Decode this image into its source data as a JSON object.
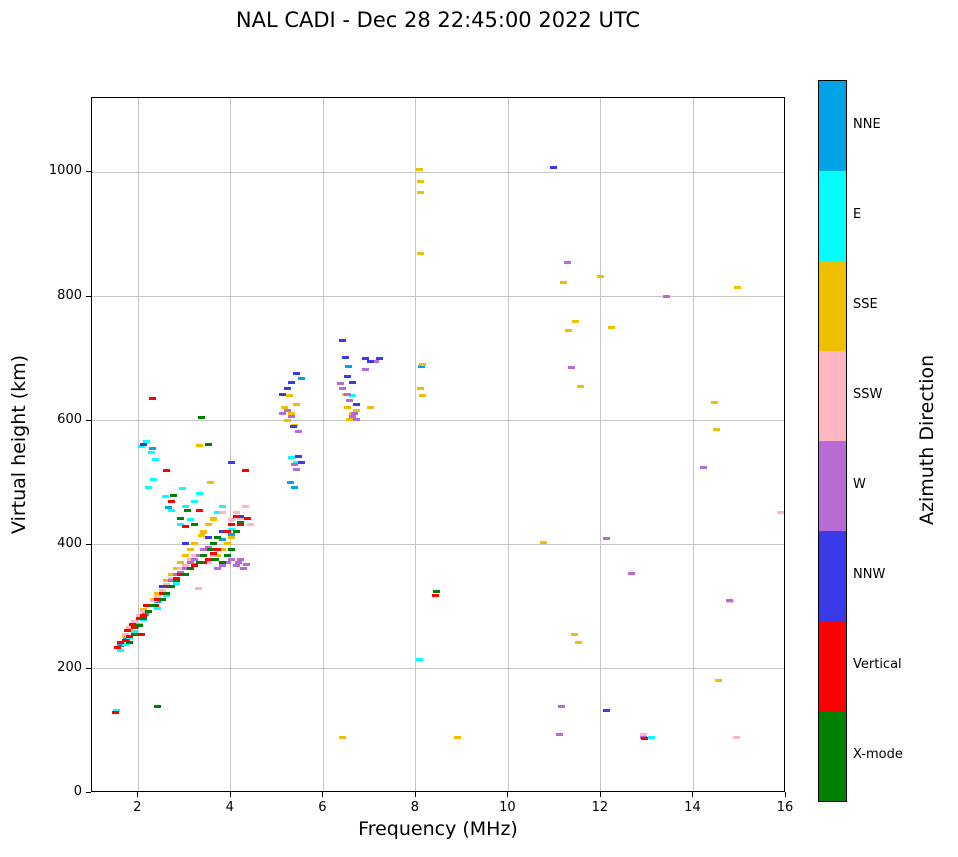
{
  "title": "NAL CADI - Dec 28 22:45:00 2022 UTC",
  "chart_data": {
    "type": "scatter",
    "title": "NAL CADI - Dec 28 22:45:00 2022 UTC",
    "xlabel": "Frequency (MHz)",
    "ylabel": "Virtual height (km)",
    "xlim": [
      1,
      16
    ],
    "ylim": [
      0,
      1120
    ],
    "xticks": [
      2,
      4,
      6,
      8,
      10,
      12,
      14,
      16
    ],
    "yticks": [
      0,
      200,
      400,
      600,
      800,
      1000
    ],
    "grid": true,
    "grid_color": "#c6c6c6",
    "marker": "horizontal-dash",
    "colorbar": {
      "label": "Azimuth Direction",
      "categories": [
        {
          "name": "NNE",
          "color": "#00A2E8"
        },
        {
          "name": "E",
          "color": "#00FFFF"
        },
        {
          "name": "SSE",
          "color": "#F0C000"
        },
        {
          "name": "SSW",
          "color": "#FFB6C1"
        },
        {
          "name": "W",
          "color": "#B86BD4"
        },
        {
          "name": "NNW",
          "color": "#3A3AE8"
        },
        {
          "name": "Vertical",
          "color": "#FF0000"
        },
        {
          "name": "X-mode",
          "color": "#008000"
        }
      ]
    },
    "series": [
      {
        "name": "NNE",
        "color": "#00A2E8",
        "points": [
          [
            1.62,
            238
          ],
          [
            1.75,
            248
          ],
          [
            1.95,
            268
          ],
          [
            2.15,
            288
          ],
          [
            2.3,
            555
          ],
          [
            2.42,
            308
          ],
          [
            2.58,
            322
          ],
          [
            2.65,
            460
          ],
          [
            2.82,
            342
          ],
          [
            3.02,
            352
          ],
          [
            3.22,
            368
          ],
          [
            3.42,
            383
          ],
          [
            3.62,
            393
          ],
          [
            3.82,
            408
          ],
          [
            4.02,
            416
          ],
          [
            5.28,
            500
          ],
          [
            5.38,
            492
          ],
          [
            5.52,
            668
          ],
          [
            6.55,
            688
          ],
          [
            8.12,
            688
          ]
        ]
      },
      {
        "name": "E",
        "color": "#00FFFF",
        "points": [
          [
            1.52,
            133
          ],
          [
            1.62,
            230
          ],
          [
            1.72,
            240
          ],
          [
            1.82,
            250
          ],
          [
            1.92,
            260
          ],
          [
            2.02,
            272
          ],
          [
            2.06,
            558
          ],
          [
            2.12,
            280
          ],
          [
            2.18,
            566
          ],
          [
            2.22,
            492
          ],
          [
            2.28,
            548
          ],
          [
            2.32,
            506
          ],
          [
            2.38,
            538
          ],
          [
            2.42,
            298
          ],
          [
            2.52,
            312
          ],
          [
            2.58,
            478
          ],
          [
            2.62,
            318
          ],
          [
            2.72,
            456
          ],
          [
            2.82,
            338
          ],
          [
            2.92,
            432
          ],
          [
            2.95,
            490
          ],
          [
            3.02,
            462
          ],
          [
            3.12,
            440
          ],
          [
            3.22,
            470
          ],
          [
            3.32,
            482
          ],
          [
            3.42,
            420
          ],
          [
            3.52,
            432
          ],
          [
            3.62,
            442
          ],
          [
            3.72,
            452
          ],
          [
            3.82,
            462
          ],
          [
            4.02,
            425
          ],
          [
            5.32,
            540
          ],
          [
            5.42,
            532
          ],
          [
            6.62,
            640
          ],
          [
            8.08,
            215
          ],
          [
            13.1,
            90
          ]
        ]
      },
      {
        "name": "SSE",
        "color": "#F0C000",
        "points": [
          [
            1.72,
            252
          ],
          [
            1.82,
            262
          ],
          [
            1.92,
            272
          ],
          [
            2.02,
            282
          ],
          [
            2.12,
            295
          ],
          [
            2.22,
            302
          ],
          [
            2.32,
            312
          ],
          [
            2.42,
            322
          ],
          [
            2.52,
            332
          ],
          [
            2.62,
            342
          ],
          [
            2.72,
            352
          ],
          [
            2.82,
            362
          ],
          [
            2.92,
            372
          ],
          [
            3.02,
            382
          ],
          [
            3.12,
            392
          ],
          [
            3.22,
            402
          ],
          [
            3.32,
            560
          ],
          [
            3.37,
            415
          ],
          [
            3.42,
            422
          ],
          [
            3.52,
            432
          ],
          [
            3.57,
            500
          ],
          [
            3.62,
            440
          ],
          [
            3.72,
            382
          ],
          [
            3.82,
            392
          ],
          [
            3.92,
            402
          ],
          [
            4.02,
            412
          ],
          [
            4.12,
            422
          ],
          [
            4.22,
            432
          ],
          [
            4.32,
            442
          ],
          [
            5.15,
            622
          ],
          [
            5.22,
            600
          ],
          [
            5.27,
            640
          ],
          [
            5.32,
            612
          ],
          [
            5.37,
            592
          ],
          [
            5.42,
            626
          ],
          [
            6.42,
            90
          ],
          [
            6.47,
            642
          ],
          [
            6.52,
            622
          ],
          [
            6.57,
            602
          ],
          [
            6.62,
            612
          ],
          [
            6.72,
            616
          ],
          [
            7.02,
            622
          ],
          [
            8.07,
            1005
          ],
          [
            8.1,
            985
          ],
          [
            8.1,
            968
          ],
          [
            8.1,
            870
          ],
          [
            8.15,
            690
          ],
          [
            8.1,
            652
          ],
          [
            8.15,
            640
          ],
          [
            8.9,
            90
          ],
          [
            10.75,
            403
          ],
          [
            11.2,
            822
          ],
          [
            11.3,
            745
          ],
          [
            11.42,
            255
          ],
          [
            11.45,
            760
          ],
          [
            11.52,
            243
          ],
          [
            11.55,
            655
          ],
          [
            12.0,
            833
          ],
          [
            12.22,
            750
          ],
          [
            14.45,
            630
          ],
          [
            14.5,
            585
          ],
          [
            14.55,
            182
          ],
          [
            14.95,
            815
          ]
        ]
      },
      {
        "name": "SSW",
        "color": "#FFB6C1",
        "points": [
          [
            1.72,
            256
          ],
          [
            1.82,
            266
          ],
          [
            1.92,
            276
          ],
          [
            2.02,
            286
          ],
          [
            2.12,
            292
          ],
          [
            2.22,
            302
          ],
          [
            2.32,
            310
          ],
          [
            2.42,
            316
          ],
          [
            2.52,
            326
          ],
          [
            2.62,
            336
          ],
          [
            2.72,
            346
          ],
          [
            2.82,
            352
          ],
          [
            2.92,
            362
          ],
          [
            3.02,
            366
          ],
          [
            3.12,
            376
          ],
          [
            3.22,
            382
          ],
          [
            3.3,
            330
          ],
          [
            3.52,
            372
          ],
          [
            3.62,
            382
          ],
          [
            3.82,
            452
          ],
          [
            4.02,
            440
          ],
          [
            4.12,
            452
          ],
          [
            4.22,
            442
          ],
          [
            4.32,
            462
          ],
          [
            4.42,
            432
          ],
          [
            12.92,
            95
          ],
          [
            14.8,
            308
          ],
          [
            14.92,
            90
          ],
          [
            15.88,
            452
          ]
        ]
      },
      {
        "name": "W",
        "color": "#B86BD4",
        "points": [
          [
            2.62,
            332
          ],
          [
            2.72,
            342
          ],
          [
            2.82,
            352
          ],
          [
            2.92,
            356
          ],
          [
            3.02,
            362
          ],
          [
            3.12,
            372
          ],
          [
            3.22,
            376
          ],
          [
            3.32,
            382
          ],
          [
            3.42,
            392
          ],
          [
            3.52,
            396
          ],
          [
            3.62,
            402
          ],
          [
            3.72,
            362
          ],
          [
            3.82,
            366
          ],
          [
            3.92,
            372
          ],
          [
            4.02,
            376
          ],
          [
            4.12,
            366
          ],
          [
            4.17,
            372
          ],
          [
            4.22,
            376
          ],
          [
            4.27,
            362
          ],
          [
            4.35,
            368
          ],
          [
            5.12,
            612
          ],
          [
            5.22,
            616
          ],
          [
            5.32,
            606
          ],
          [
            5.37,
            530
          ],
          [
            5.42,
            522
          ],
          [
            5.47,
            582
          ],
          [
            6.37,
            660
          ],
          [
            6.42,
            652
          ],
          [
            6.52,
            642
          ],
          [
            6.57,
            632
          ],
          [
            6.62,
            606
          ],
          [
            6.67,
            612
          ],
          [
            6.72,
            602
          ],
          [
            6.92,
            682
          ],
          [
            7.12,
            695
          ],
          [
            11.1,
            95
          ],
          [
            11.15,
            140
          ],
          [
            11.27,
            855
          ],
          [
            11.37,
            685
          ],
          [
            12.12,
            410
          ],
          [
            12.67,
            353
          ],
          [
            12.92,
            90
          ],
          [
            13.42,
            800
          ],
          [
            14.22,
            525
          ],
          [
            14.77,
            310
          ]
        ]
      },
      {
        "name": "NNW",
        "color": "#3A3AE8",
        "points": [
          [
            2.12,
            562
          ],
          [
            2.52,
            332
          ],
          [
            3.02,
            402
          ],
          [
            3.52,
            412
          ],
          [
            3.82,
            422
          ],
          [
            4.02,
            532
          ],
          [
            4.22,
            446
          ],
          [
            5.12,
            642
          ],
          [
            5.22,
            652
          ],
          [
            5.32,
            662
          ],
          [
            5.35,
            590
          ],
          [
            5.42,
            676
          ],
          [
            5.47,
            542
          ],
          [
            5.52,
            532
          ],
          [
            6.42,
            730
          ],
          [
            6.47,
            702
          ],
          [
            6.52,
            672
          ],
          [
            6.62,
            662
          ],
          [
            6.72,
            626
          ],
          [
            6.92,
            700
          ],
          [
            7.02,
            696
          ],
          [
            7.22,
            700
          ],
          [
            10.97,
            1008
          ],
          [
            12.12,
            133
          ]
        ]
      },
      {
        "name": "Vertical",
        "color": "#FF0000",
        "points": [
          [
            1.5,
            130
          ],
          [
            1.55,
            235
          ],
          [
            1.62,
            242
          ],
          [
            1.72,
            246
          ],
          [
            1.77,
            262
          ],
          [
            1.82,
            252
          ],
          [
            1.87,
            272
          ],
          [
            1.92,
            266
          ],
          [
            2.02,
            282
          ],
          [
            2.07,
            256
          ],
          [
            2.12,
            286
          ],
          [
            2.17,
            302
          ],
          [
            2.3,
            635
          ],
          [
            2.37,
            302
          ],
          [
            2.42,
            312
          ],
          [
            2.52,
            322
          ],
          [
            2.62,
            520
          ],
          [
            2.67,
            332
          ],
          [
            2.72,
            470
          ],
          [
            2.82,
            346
          ],
          [
            2.92,
            352
          ],
          [
            3.02,
            430
          ],
          [
            3.12,
            362
          ],
          [
            3.22,
            366
          ],
          [
            3.32,
            456
          ],
          [
            3.42,
            372
          ],
          [
            3.52,
            376
          ],
          [
            3.62,
            386
          ],
          [
            3.72,
            392
          ],
          [
            3.92,
            422
          ],
          [
            4.02,
            432
          ],
          [
            4.12,
            446
          ],
          [
            4.22,
            432
          ],
          [
            4.32,
            520
          ],
          [
            4.37,
            442
          ],
          [
            8.42,
            318
          ],
          [
            12.95,
            88
          ]
        ]
      },
      {
        "name": "X-mode",
        "color": "#008000",
        "points": [
          [
            2.42,
            140
          ],
          [
            1.82,
            242
          ],
          [
            1.92,
            256
          ],
          [
            2.02,
            270
          ],
          [
            2.12,
            282
          ],
          [
            2.22,
            292
          ],
          [
            2.32,
            302
          ],
          [
            2.52,
            312
          ],
          [
            2.62,
            322
          ],
          [
            2.72,
            332
          ],
          [
            2.77,
            480
          ],
          [
            2.82,
            342
          ],
          [
            2.92,
            442
          ],
          [
            3.02,
            352
          ],
          [
            3.07,
            456
          ],
          [
            3.12,
            362
          ],
          [
            3.22,
            432
          ],
          [
            3.32,
            372
          ],
          [
            3.37,
            605
          ],
          [
            3.42,
            382
          ],
          [
            3.52,
            562
          ],
          [
            3.57,
            392
          ],
          [
            3.62,
            402
          ],
          [
            3.67,
            376
          ],
          [
            3.72,
            412
          ],
          [
            3.82,
            372
          ],
          [
            3.92,
            382
          ],
          [
            4.02,
            392
          ],
          [
            4.12,
            422
          ],
          [
            4.22,
            436
          ],
          [
            8.45,
            325
          ]
        ]
      }
    ]
  }
}
